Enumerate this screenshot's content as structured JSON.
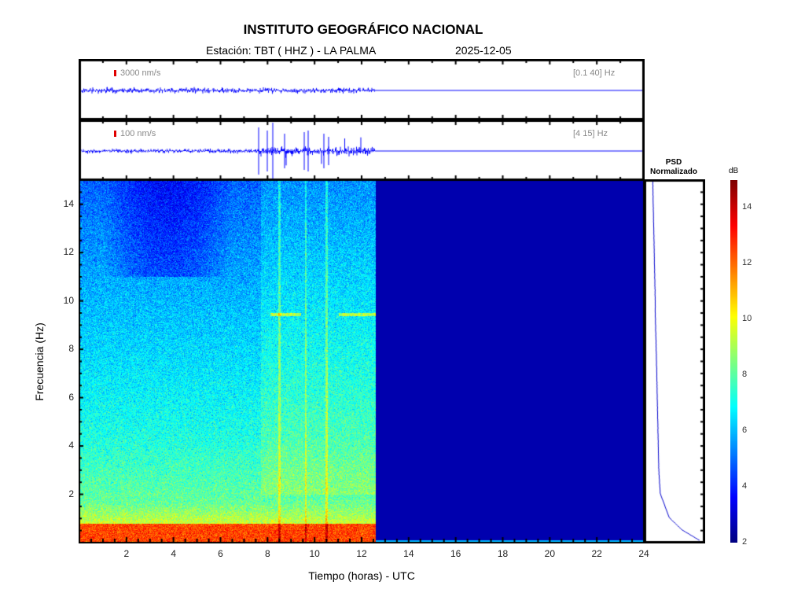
{
  "header": {
    "title": "INSTITUTO GEOGRÁFICO NACIONAL",
    "station": "Estación:  TBT ( HHZ ) - LA PALMA",
    "date": "2025-12-05"
  },
  "traces": [
    {
      "scale_label": "3000 nm/s",
      "band_label": "[0.1 40] Hz",
      "scale_color": "#e00000",
      "trace_color": "#0000ff"
    },
    {
      "scale_label": "100 nm/s",
      "band_label": "[4 15] Hz",
      "scale_color": "#e00000",
      "trace_color": "#0000ff"
    }
  ],
  "psd": {
    "title_line1": "PSD",
    "title_line2": "Normalizado"
  },
  "chart_data": {
    "type": "heatmap",
    "xlabel": "Tiempo (horas) - UTC",
    "ylabel": "Frecuencia  (Hz)",
    "xlim": [
      0,
      24
    ],
    "ylim": [
      0,
      15
    ],
    "x_ticks": [
      "2",
      "4",
      "6",
      "8",
      "10",
      "12",
      "14",
      "16",
      "18",
      "20",
      "22",
      "24"
    ],
    "y_ticks": [
      "2",
      "4",
      "6",
      "8",
      "10",
      "12",
      "14"
    ],
    "data_end_hour": 12.6,
    "tremor_onset_hour": 7.7,
    "colorbar": {
      "label": "dB",
      "range": [
        2,
        15
      ],
      "ticks": [
        "2",
        "4",
        "6",
        "8",
        "10",
        "12",
        "14"
      ],
      "colormap": "jet"
    },
    "psd_profile": {
      "freq_hz": [
        0,
        0.5,
        1,
        2,
        3,
        4,
        6,
        8,
        9.5,
        10,
        12,
        14,
        15
      ],
      "normalized": [
        1.0,
        0.6,
        0.35,
        0.17,
        0.14,
        0.13,
        0.11,
        0.09,
        0.07,
        0.07,
        0.05,
        0.03,
        0.02
      ]
    }
  }
}
